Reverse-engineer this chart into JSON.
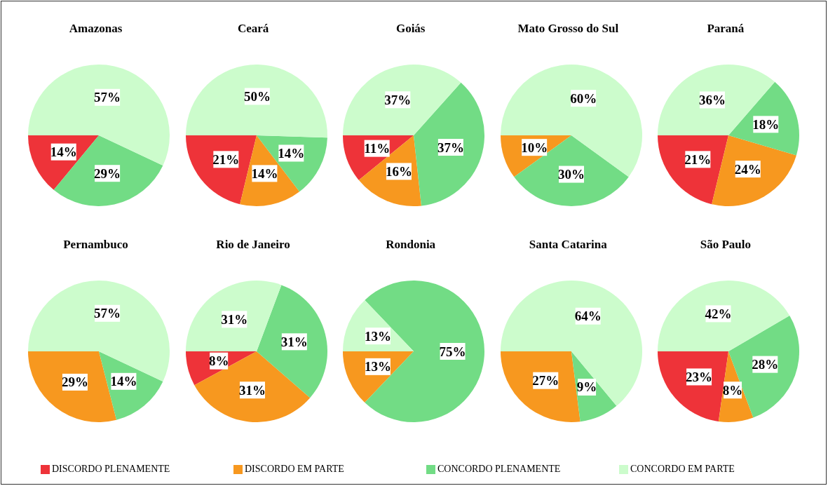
{
  "chart_data": [
    {
      "type": "pie",
      "title": "Amazonas",
      "categories": [
        "DISCORDO PLENAMENTE",
        "DISCORDO EM PARTE",
        "CONCORDO PLENAMENTE",
        "CONCORDO EM PARTE"
      ],
      "values": [
        14,
        0,
        29,
        57
      ],
      "value_labels": [
        "14%",
        null,
        "29%",
        "57%"
      ],
      "colors": [
        "#ee3339",
        "#f7981f",
        "#72dc85",
        "#ccfccc"
      ],
      "legend": "bottom"
    },
    {
      "type": "pie",
      "title": "Ceará",
      "categories": [
        null,
        null,
        null,
        null
      ],
      "values": [
        21,
        14,
        14,
        50
      ],
      "value_labels": [
        "21%",
        "14%",
        "14%",
        "50%"
      ],
      "colors": [
        "#ee3339",
        "#f7981f",
        "#72dc85",
        "#ccfccc"
      ]
    },
    {
      "type": "pie",
      "title": "Goiás",
      "categories": [
        null,
        null,
        null,
        null
      ],
      "values": [
        11,
        16,
        37,
        37
      ],
      "value_labels": [
        "11%",
        "16%",
        "37%",
        "37%"
      ],
      "colors": [
        "#ee3339",
        "#f7981f",
        "#72dc85",
        "#ccfccc"
      ]
    },
    {
      "type": "pie",
      "title": "Mato Grosso do Sul",
      "categories": [
        null,
        null,
        null,
        null
      ],
      "values": [
        0,
        10,
        30,
        60
      ],
      "value_labels": [
        null,
        "10%",
        "30%",
        "60%"
      ],
      "colors": [
        "#ee3339",
        "#f7981f",
        "#72dc85",
        "#ccfccc"
      ]
    },
    {
      "type": "pie",
      "title": "Paraná",
      "categories": [
        null,
        null,
        null,
        null
      ],
      "values": [
        21,
        24,
        18,
        36
      ],
      "value_labels": [
        "21%",
        "24%",
        "18%",
        "36%"
      ],
      "colors": [
        "#ee3339",
        "#f7981f",
        "#72dc85",
        "#ccfccc"
      ]
    },
    {
      "type": "pie",
      "title": "Pernambuco",
      "categories": [
        null,
        null,
        null,
        null
      ],
      "values": [
        0,
        29,
        14,
        57
      ],
      "value_labels": [
        null,
        "29%",
        "14%",
        "57%"
      ],
      "colors": [
        "#ee3339",
        "#f7981f",
        "#72dc85",
        "#ccfccc"
      ]
    },
    {
      "type": "pie",
      "title": "Rio de Janeiro",
      "categories": [
        null,
        null,
        null,
        null
      ],
      "values": [
        8,
        31,
        31,
        31
      ],
      "value_labels": [
        "8%",
        "31%",
        "31%",
        "31%"
      ],
      "colors": [
        "#ee3339",
        "#f7981f",
        "#72dc85",
        "#ccfccc"
      ]
    },
    {
      "type": "pie",
      "title": "Rondonia",
      "categories": [
        null,
        null,
        null,
        null
      ],
      "values": [
        0,
        13,
        75,
        13
      ],
      "value_labels": [
        null,
        "13%",
        "75%",
        "13%"
      ],
      "colors": [
        "#ee3339",
        "#f7981f",
        "#72dc85",
        "#ccfccc"
      ]
    },
    {
      "type": "pie",
      "title": "Santa Catarina",
      "categories": [
        null,
        null,
        null,
        null
      ],
      "values": [
        0,
        27,
        9,
        64
      ],
      "value_labels": [
        null,
        "27%",
        "9%",
        "64%"
      ],
      "colors": [
        "#ee3339",
        "#f7981f",
        "#72dc85",
        "#ccfccc"
      ]
    },
    {
      "type": "pie",
      "title": "São Paulo",
      "categories": [
        null,
        null,
        null,
        null
      ],
      "values": [
        23,
        8,
        28,
        42
      ],
      "value_labels": [
        "23%",
        "8%",
        "28%",
        "42%"
      ],
      "colors": [
        "#ee3339",
        "#f7981f",
        "#72dc85",
        "#ccfccc"
      ]
    }
  ]
}
